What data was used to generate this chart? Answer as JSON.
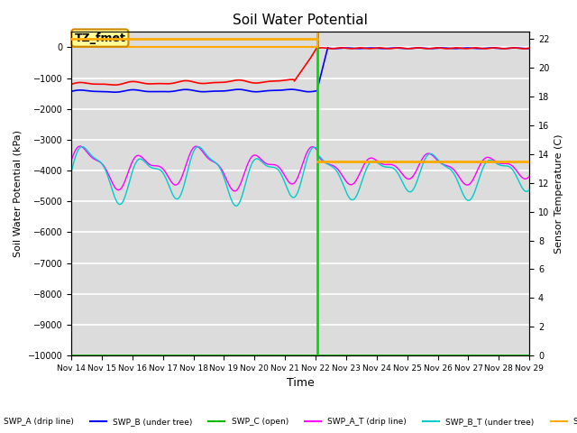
{
  "title": "Soil Water Potential",
  "xlabel": "Time",
  "ylabel_left": "Soil Water Potential (kPa)",
  "ylabel_right": "Sensor Temperature (C)",
  "ylim_left": [
    -10000,
    500
  ],
  "ylim_right": [
    0,
    22.5
  ],
  "background_color": "#dcdcdc",
  "x_start": 14,
  "x_end": 29,
  "x_ticks": [
    14,
    15,
    16,
    17,
    18,
    19,
    20,
    21,
    22,
    23,
    24,
    25,
    26,
    27,
    28,
    29
  ],
  "x_tick_labels": [
    "Nov 14",
    "Nov 15",
    "Nov 16",
    "Nov 17",
    "Nov 18",
    "Nov 19",
    "Nov 20",
    "Nov 21",
    "Nov 22",
    "Nov 23",
    "Nov 24",
    "Nov 25",
    "Nov 26",
    "Nov 27",
    "Nov 28",
    "Nov 29"
  ],
  "y_ticks_left": [
    0,
    -1000,
    -2000,
    -3000,
    -4000,
    -5000,
    -6000,
    -7000,
    -8000,
    -9000,
    -10000
  ],
  "y_ticks_right": [
    0,
    2,
    4,
    6,
    8,
    10,
    12,
    14,
    16,
    18,
    20,
    22
  ],
  "tz_fmet_label": "TZ_fmet",
  "tz_fmet_x_end": 22.05,
  "tz_fmet_color": "#ffaa00",
  "vertical_line_x": 22.05,
  "vertical_line_color": "#00dd00",
  "temp_high": 22.0,
  "temp_low": 13.5,
  "colors": {
    "SWP_A": "#ff0000",
    "SWP_B": "#0000ff",
    "SWP_C": "#00bb00",
    "SWP_A_T": "#ff00ff",
    "SWP_B_T": "#00cccc",
    "temp": "#ffaa00"
  }
}
